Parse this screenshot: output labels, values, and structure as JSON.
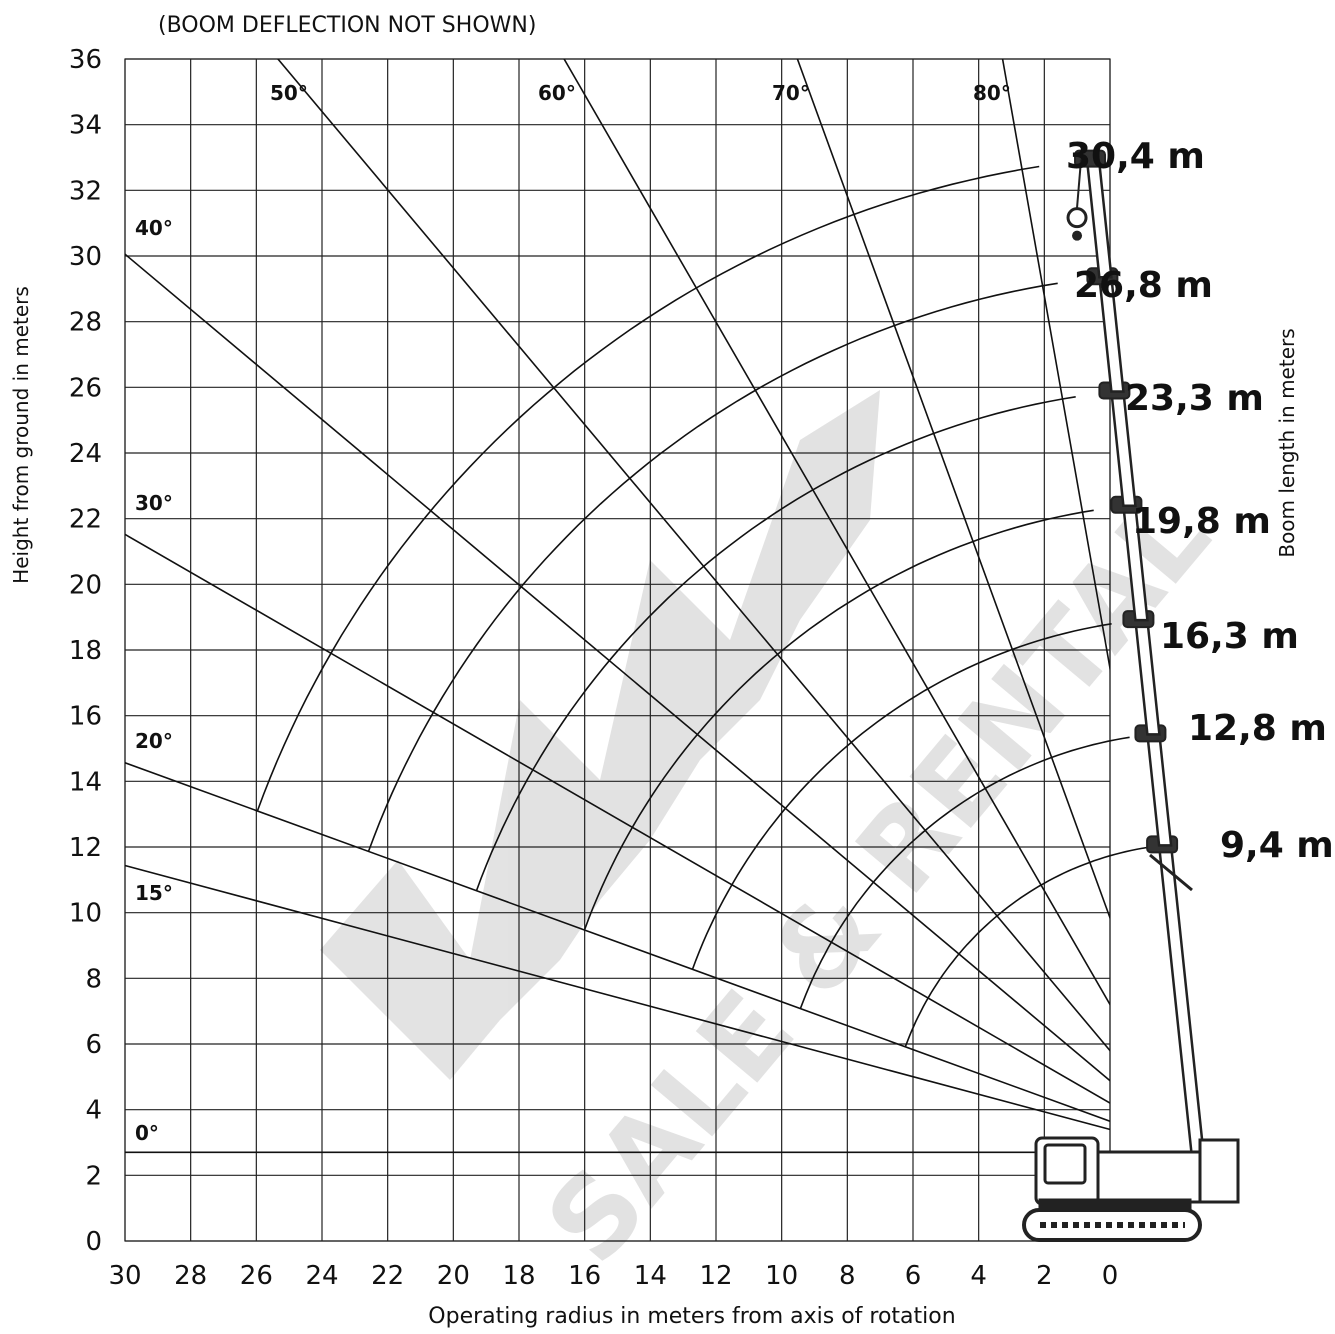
{
  "chart_data": {
    "type": "line",
    "subtitle": "(BOOM DEFLECTION NOT SHOWN)",
    "xlabel": "Operating radius in meters from axis of rotation",
    "ylabel": "Height from ground in meters",
    "y2label": "Boom length in meters",
    "xlim": [
      30,
      0
    ],
    "ylim": [
      0,
      36
    ],
    "x_ticks": [
      "30",
      "28",
      "26",
      "24",
      "22",
      "20",
      "18",
      "16",
      "14",
      "12",
      "10",
      "8",
      "6",
      "4",
      "2",
      "0"
    ],
    "y_ticks": [
      "0",
      "2",
      "4",
      "6",
      "8",
      "10",
      "12",
      "14",
      "16",
      "18",
      "20",
      "22",
      "24",
      "26",
      "28",
      "30",
      "32",
      "34",
      "36"
    ],
    "grid": true,
    "pivot": {
      "x": -2.6,
      "y": 2.7
    },
    "angle_lines": [
      {
        "label": "0°",
        "angle": 0
      },
      {
        "label": "15°",
        "angle": 15
      },
      {
        "label": "20°",
        "angle": 20
      },
      {
        "label": "30°",
        "angle": 30
      },
      {
        "label": "40°",
        "angle": 40
      },
      {
        "label": "50°",
        "angle": 50
      },
      {
        "label": "60°",
        "angle": 60
      },
      {
        "label": "70°",
        "angle": 70
      },
      {
        "label": "80°",
        "angle": 80
      }
    ],
    "boom_lengths": [
      {
        "label": "9,4 m",
        "value": 9.4
      },
      {
        "label": "12,8 m",
        "value": 12.8
      },
      {
        "label": "16,3 m",
        "value": 16.3
      },
      {
        "label": "19,8 m",
        "value": 19.8
      },
      {
        "label": "23,3 m",
        "value": 23.3
      },
      {
        "label": "26,8 m",
        "value": 26.8
      },
      {
        "label": "30,4 m",
        "value": 30.4
      }
    ]
  },
  "watermark": {
    "text": "SALE & RENTAL",
    "color": "#d9d9d9"
  },
  "colors": {
    "line": "#111111",
    "grid": "#222222",
    "crane": "#222222"
  }
}
